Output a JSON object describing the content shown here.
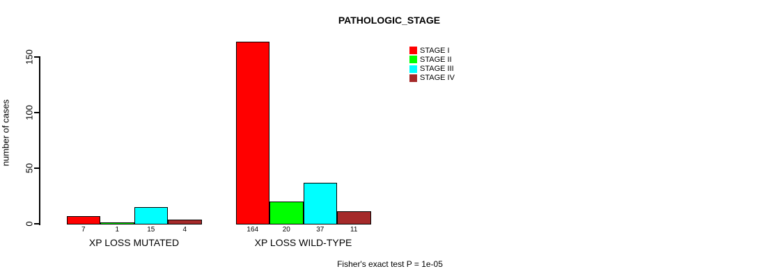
{
  "chart_data": {
    "type": "bar",
    "title": "PATHOLOGIC_STAGE",
    "xlabel": "",
    "ylabel": "number of cases",
    "categories": [
      "XP LOSS MUTATED",
      "XP LOSS WILD-TYPE"
    ],
    "series": [
      {
        "name": "STAGE I",
        "color": "#FF0000",
        "values": [
          7,
          164
        ]
      },
      {
        "name": "STAGE II",
        "color": "#00FF00",
        "values": [
          1,
          20
        ]
      },
      {
        "name": "STAGE III",
        "color": "#00FFFF",
        "values": [
          15,
          37
        ]
      },
      {
        "name": "STAGE IV",
        "color": "#A52A2A",
        "values": [
          4,
          11
        ]
      }
    ],
    "yticks": [
      0,
      50,
      100,
      150
    ],
    "ylim": [
      0,
      164
    ],
    "bar_value_labels": [
      [
        7,
        1,
        15,
        4
      ],
      [
        164,
        20,
        37,
        11
      ]
    ],
    "grid": false,
    "legend_position": "top-right",
    "annotation": "Fisher's exact test P = 1e-05"
  }
}
